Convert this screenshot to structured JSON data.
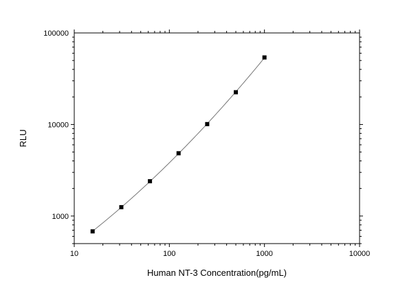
{
  "chart_data": {
    "type": "scatter",
    "xlabel": "Human NT-3 Concentration(pg/mL)",
    "ylabel": "RLU",
    "x_scale": "log",
    "y_scale": "log",
    "xlim": [
      10,
      10000
    ],
    "ylim": [
      500,
      100000
    ],
    "x_ticks": [
      {
        "value": 10,
        "label": "10"
      },
      {
        "value": 100,
        "label": "100"
      },
      {
        "value": 1000,
        "label": "1000"
      },
      {
        "value": 10000,
        "label": "10000"
      }
    ],
    "y_ticks": [
      {
        "value": 1000,
        "label": "1000"
      },
      {
        "value": 10000,
        "label": "10000"
      },
      {
        "value": 100000,
        "label": "100000"
      }
    ],
    "grid": false,
    "series": [
      {
        "points": [
          {
            "x": 15.6,
            "y": 680
          },
          {
            "x": 31.25,
            "y": 1250
          },
          {
            "x": 62.5,
            "y": 2400
          },
          {
            "x": 125,
            "y": 4850
          },
          {
            "x": 250,
            "y": 10100
          },
          {
            "x": 500,
            "y": 22500
          },
          {
            "x": 1000,
            "y": 54000
          }
        ],
        "marker": "square",
        "marker_color": "#000000",
        "fit_line": true,
        "line_color": "#777777"
      }
    ]
  }
}
